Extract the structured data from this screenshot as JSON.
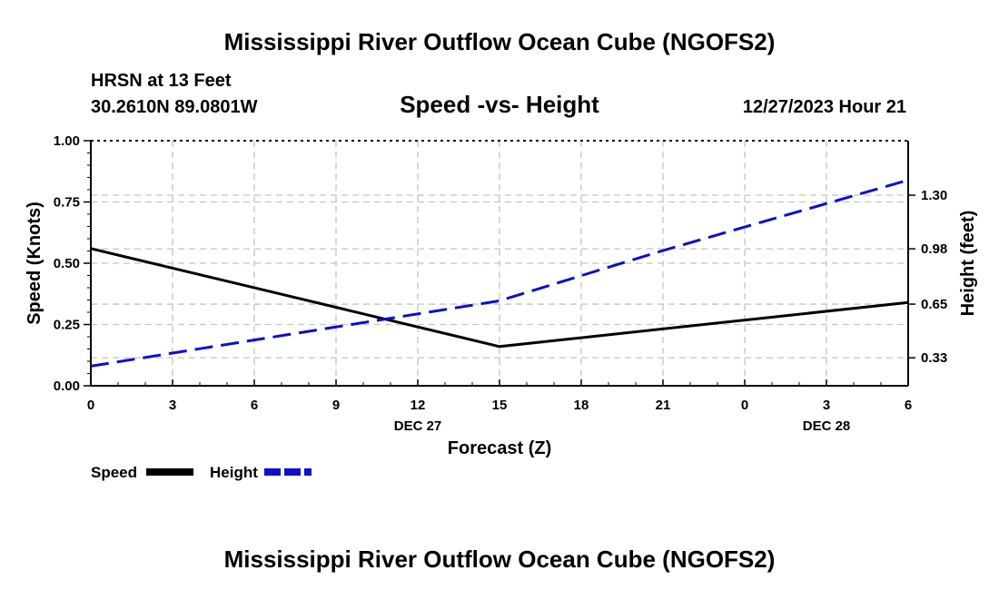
{
  "header": {
    "title": "Mississippi River Outflow Ocean Cube (NGOFS2)",
    "station": "HRSN at 13 Feet",
    "coords": "30.2610N  89.0801W",
    "datetime": "12/27/2023 Hour 21",
    "footer_title": "Mississippi River Outflow Ocean Cube (NGOFS2)"
  },
  "chart_data": {
    "type": "line",
    "title": "Speed -vs- Height",
    "xlabel": "Forecast (Z)",
    "ylabel": "Speed (Knots)",
    "y2label": "Height (feet)",
    "x_hours": [
      0,
      15,
      30
    ],
    "x_tick_labels": [
      "0",
      "3",
      "6",
      "9",
      "12",
      "15",
      "18",
      "21",
      "0",
      "3",
      "6"
    ],
    "x_date_labels": [
      {
        "label": "DEC 27",
        "tick_index": 4
      },
      {
        "label": "DEC 28",
        "tick_index": 9
      }
    ],
    "ylim": [
      0,
      1
    ],
    "y_ticks": [
      "0.00",
      "0.25",
      "0.50",
      "0.75",
      "1.00"
    ],
    "y2lim": [
      0.163,
      1.625
    ],
    "y2_ticks": [
      "0.33",
      "0.65",
      "0.98",
      "1.30"
    ],
    "series": [
      {
        "name": "Speed",
        "axis": "left",
        "color": "#000000",
        "dash": "solid",
        "x": [
          0,
          15,
          30
        ],
        "values": [
          0.56,
          0.16,
          0.34
        ]
      },
      {
        "name": "Height",
        "axis": "right",
        "color": "#0a10cc",
        "dash": "dashed",
        "x": [
          0,
          15,
          18,
          21,
          24,
          27,
          30
        ],
        "values": [
          0.28,
          0.67,
          0.82,
          0.97,
          1.11,
          1.25,
          1.39
        ]
      }
    ],
    "grid": true,
    "legend": [
      "Speed",
      "Height"
    ],
    "legend_position": "bottom-left"
  }
}
